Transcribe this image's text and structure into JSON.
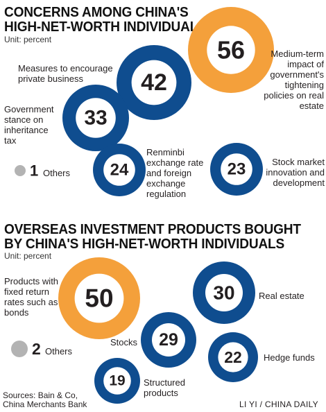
{
  "chart_data": [
    {
      "type": "bubble",
      "title": "CONCERNS AMONG CHINA'S HIGH-NET-WORTH INDIVIDUALS",
      "title_lines": [
        "CONCERNS AMONG CHINA'S",
        "HIGH-NET-WORTH INDIVIDUALS"
      ],
      "unit": "Unit: percent",
      "items": [
        {
          "label": "Medium-term impact of government's tightening policies on real estate",
          "value": 56,
          "color": "#f4a03b"
        },
        {
          "label": "Measures to encourage private business",
          "value": 42,
          "color": "#0f4d8f"
        },
        {
          "label": "Government stance on inheritance tax",
          "value": 33,
          "color": "#0f4d8f"
        },
        {
          "label": "Renminbi exchange rate and foreign exchange regulation",
          "value": 24,
          "color": "#0f4d8f"
        },
        {
          "label": "Stock market innovation and development",
          "value": 23,
          "color": "#0f4d8f"
        },
        {
          "label": "Others",
          "value": 1,
          "color": "#b3b3b3"
        }
      ]
    },
    {
      "type": "bubble",
      "title": "OVERSEAS INVESTMENT PRODUCTS BOUGHT BY CHINA'S HIGH-NET-WORTH INDIVIDUALS",
      "title_lines": [
        "OVERSEAS INVESTMENT PRODUCTS BOUGHT",
        "BY CHINA'S HIGH-NET-WORTH INDIVIDUALS"
      ],
      "unit": "Unit: percent",
      "items": [
        {
          "label": "Products with fixed return rates such as bonds",
          "value": 50,
          "color": "#f4a03b"
        },
        {
          "label": "Real estate",
          "value": 30,
          "color": "#0f4d8f"
        },
        {
          "label": "Stocks",
          "value": 29,
          "color": "#0f4d8f"
        },
        {
          "label": "Hedge funds",
          "value": 22,
          "color": "#0f4d8f"
        },
        {
          "label": "Structured products",
          "value": 19,
          "color": "#0f4d8f"
        },
        {
          "label": "Others",
          "value": 2,
          "color": "#b3b3b3"
        }
      ]
    }
  ],
  "source_lines": [
    "Sources: Bain & Co,",
    "China Merchants Bank"
  ],
  "credit": "LI YI / CHINA DAILY"
}
